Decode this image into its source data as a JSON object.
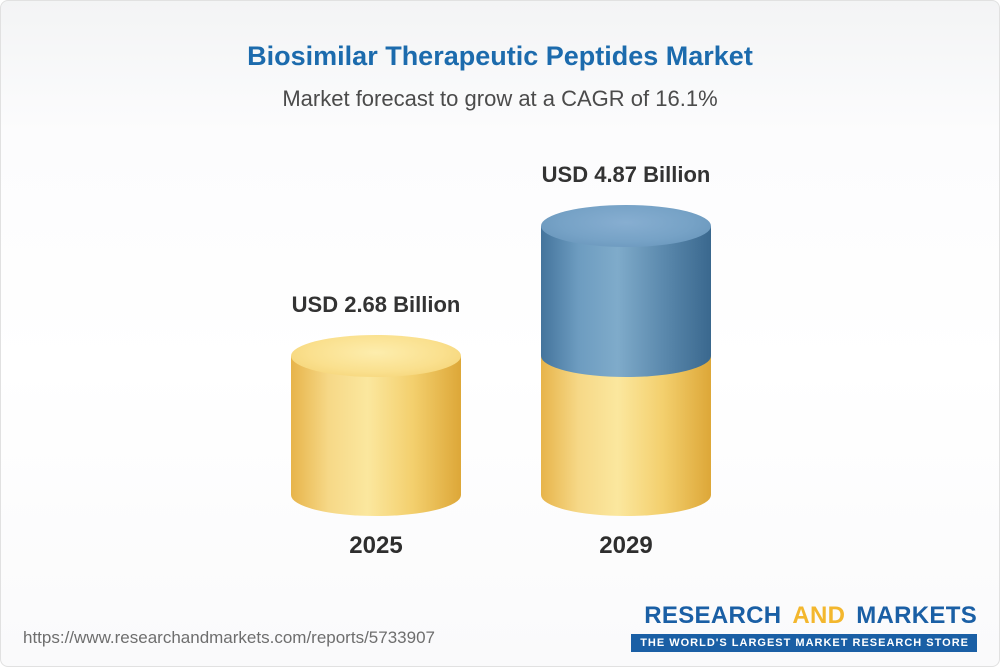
{
  "header": {
    "title": "Biosimilar Therapeutic Peptides Market",
    "subtitle": "Market forecast to grow at a CAGR of 16.1%"
  },
  "chart_data": {
    "type": "bar",
    "variant": "3d-cylinder",
    "title": "Biosimilar Therapeutic Peptides Market",
    "subtitle": "Market forecast to grow at a CAGR of 16.1%",
    "cagr_percent": 16.1,
    "unit": "USD Billion",
    "categories": [
      "2025",
      "2029"
    ],
    "values": [
      2.68,
      4.87
    ],
    "value_labels": [
      "USD 2.68 Billion",
      "USD 4.87 Billion"
    ],
    "series_note": "2029 cylinder shows base value (gold) equal to 2025 plus growth segment (blue) on top",
    "axes": "none",
    "grid": false,
    "legend": "none",
    "colors": {
      "base_segment": "#f6ce6b",
      "growth_segment": "#4a7ea5",
      "title_accent": "#1c6bad"
    }
  },
  "footer": {
    "url": "https://www.researchandmarkets.com/reports/5733907",
    "logo": {
      "word1": "RESEARCH",
      "word2": "AND",
      "word3": "MARKETS",
      "tagline": "THE WORLD'S LARGEST MARKET RESEARCH STORE",
      "brand_blue": "#1a5fa5",
      "brand_gold": "#f3b72e"
    }
  }
}
